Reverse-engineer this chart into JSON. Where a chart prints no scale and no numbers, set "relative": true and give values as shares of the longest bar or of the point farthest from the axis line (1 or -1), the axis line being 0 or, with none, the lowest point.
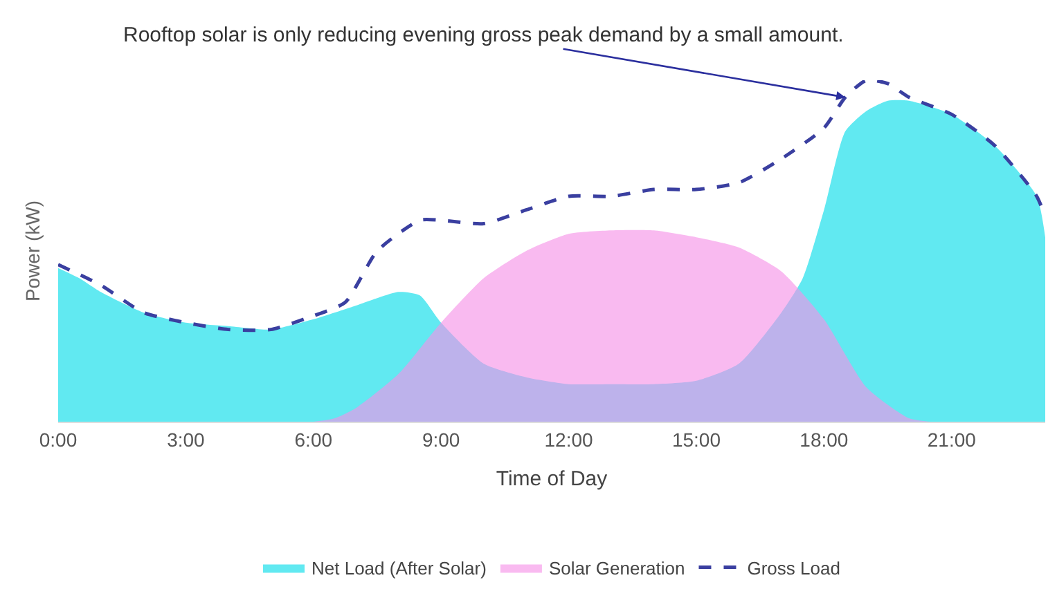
{
  "chart_data": {
    "type": "area",
    "relative": true,
    "xlabel": "Time of Day",
    "ylabel": "Power (kW)",
    "annotations": [
      {
        "text": "Rooftop solar is only reducing evening gross peak demand by a small amount.",
        "x": 18.5,
        "y": 0.95
      }
    ],
    "xlim": [
      0,
      23.2
    ],
    "xticks": [
      {
        "value": 0,
        "label": "0:00"
      },
      {
        "value": 3,
        "label": "3:00"
      },
      {
        "value": 6,
        "label": "6:00"
      },
      {
        "value": 9,
        "label": "9:00"
      },
      {
        "value": 12,
        "label": "12:00"
      },
      {
        "value": 15,
        "label": "15:00"
      },
      {
        "value": 18,
        "label": "18:00"
      },
      {
        "value": 21,
        "label": "21:00"
      }
    ],
    "legend": "bottom",
    "series": [
      {
        "name": "Net Load (After Solar)",
        "color": "#00dce8",
        "x": [
          0,
          0.5,
          1,
          2,
          3,
          4,
          5,
          6,
          7,
          8,
          8.5,
          9,
          10,
          11,
          12,
          13,
          14,
          15,
          16,
          17,
          17.5,
          18,
          18.5,
          19,
          19.5,
          20,
          21,
          22,
          23,
          23.2
        ],
        "values": [
          0.45,
          0.42,
          0.38,
          0.32,
          0.29,
          0.28,
          0.27,
          0.3,
          0.34,
          0.38,
          0.37,
          0.29,
          0.17,
          0.13,
          0.11,
          0.11,
          0.11,
          0.12,
          0.17,
          0.32,
          0.42,
          0.62,
          0.85,
          0.91,
          0.94,
          0.94,
          0.9,
          0.81,
          0.66,
          0.54
        ]
      },
      {
        "name": "Solar Generation",
        "color": "#f590e6",
        "x": [
          0,
          6,
          6.5,
          7,
          8,
          9,
          10,
          11,
          12,
          13,
          14,
          15,
          16,
          17,
          18,
          19,
          20,
          20.5,
          23.2
        ],
        "values": [
          0,
          0,
          0.01,
          0.04,
          0.14,
          0.29,
          0.42,
          0.5,
          0.55,
          0.56,
          0.56,
          0.54,
          0.51,
          0.44,
          0.3,
          0.1,
          0.01,
          0,
          0
        ]
      },
      {
        "name": "Gross Load",
        "type": "line",
        "line_style": "dashed",
        "marker": "none",
        "color": "#3a3fa0",
        "x": [
          0,
          1,
          2,
          3,
          4,
          5,
          6,
          6.75,
          7.5,
          8.5,
          9,
          10,
          11,
          12,
          13,
          14,
          15,
          16,
          17,
          18,
          18.5,
          19,
          19.5,
          20,
          21,
          22,
          23,
          23.2
        ],
        "values": [
          0.46,
          0.4,
          0.32,
          0.29,
          0.27,
          0.27,
          0.31,
          0.35,
          0.5,
          0.59,
          0.59,
          0.58,
          0.62,
          0.66,
          0.66,
          0.68,
          0.68,
          0.7,
          0.77,
          0.86,
          0.95,
          1.0,
          0.99,
          0.95,
          0.9,
          0.81,
          0.66,
          0.6
        ]
      }
    ]
  }
}
